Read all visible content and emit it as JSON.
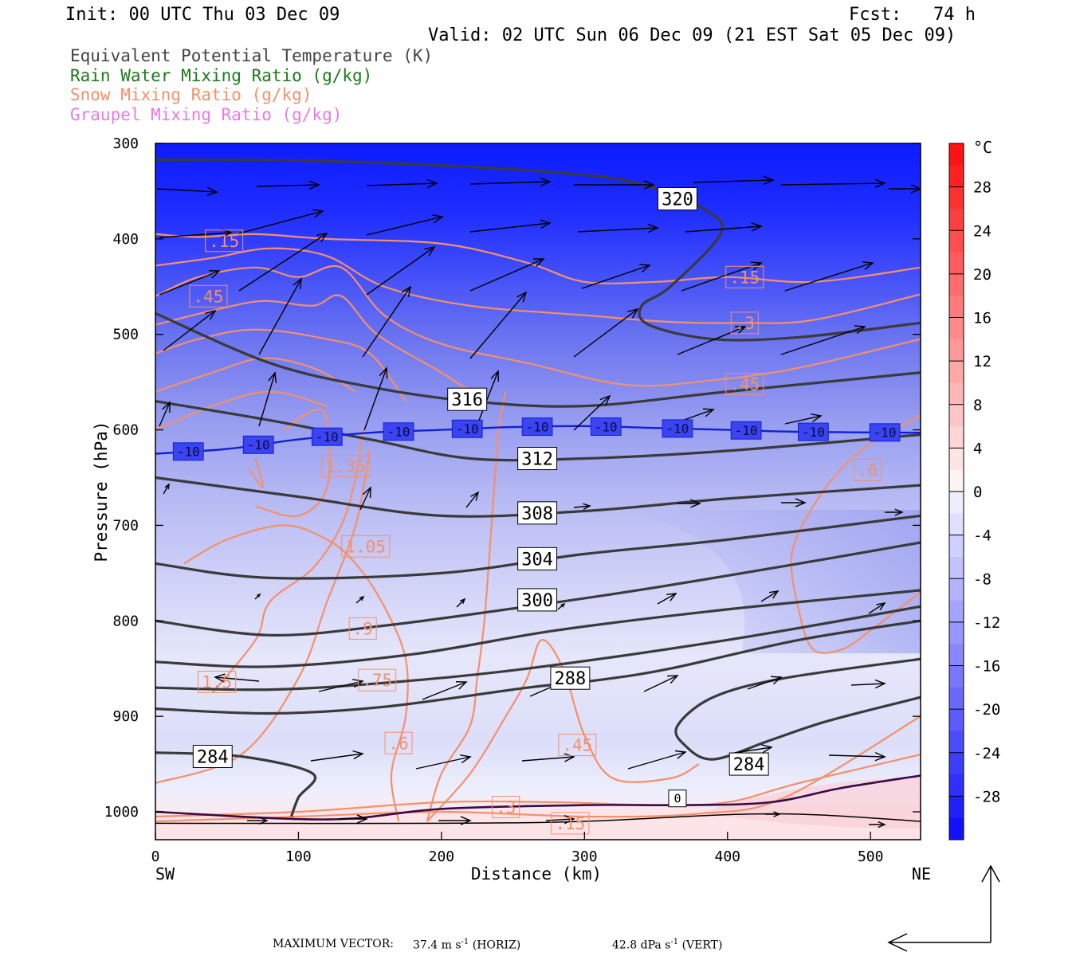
{
  "header": {
    "init": "Init: 00 UTC Thu 03 Dec 09",
    "fcst": "Fcst:   74 h",
    "valid": "Valid: 02 UTC Sun 06 Dec 09 (21 EST Sat 05 Dec 09)"
  },
  "legend": [
    {
      "label": "Equivalent Potential Temperature (K)",
      "color": "#444444"
    },
    {
      "label": "Rain Water Mixing Ratio (g/kg)",
      "color": "#1a7a1a"
    },
    {
      "label": "Snow Mixing Ratio (g/kg)",
      "color": "#f4906a"
    },
    {
      "label": "Graupel Mixing Ratio (g/kg)",
      "color": "#e87ae8"
    }
  ],
  "footer": {
    "max_label": "MAXIMUM VECTOR:",
    "horiz_value": "37.4 m s",
    "horiz_exp": "-1",
    "horiz_unit": "(HORIZ)",
    "vert_value": "42.8 dPa s",
    "vert_exp": "-1",
    "vert_unit": "(VERT)"
  },
  "chart_data": {
    "type": "cross-section",
    "xlabel": "Distance (km)",
    "ylabel": "Pressure (hPa)",
    "xlim": [
      0,
      535
    ],
    "ylim": [
      1030,
      300
    ],
    "x_ticks": [
      0,
      100,
      200,
      300,
      400,
      500
    ],
    "y_ticks": [
      300,
      400,
      500,
      600,
      700,
      800,
      900,
      1000
    ],
    "left_end_label": "SW",
    "right_end_label": "NE",
    "colorbar": {
      "unit": "°C",
      "labels": [
        28,
        24,
        20,
        16,
        12,
        8,
        4,
        0,
        -4,
        -8,
        -12,
        -16,
        -20,
        -24,
        -28
      ],
      "range": [
        -32,
        32
      ]
    },
    "theta_e_contours": [
      {
        "level": 320,
        "label": "320",
        "points": [
          [
            0,
            317
          ],
          [
            100,
            318
          ],
          [
            200,
            323
          ],
          [
            300,
            333
          ],
          [
            345,
            345
          ],
          [
            385,
            370
          ],
          [
            395,
            395
          ],
          [
            360,
            450
          ],
          [
            340,
            470
          ],
          [
            345,
            490
          ],
          [
            390,
            505
          ],
          [
            450,
            503
          ],
          [
            535,
            488
          ]
        ],
        "label_at": [
          365,
          358
        ]
      },
      {
        "level": 316,
        "label": "316",
        "points": [
          [
            0,
            478
          ],
          [
            80,
            530
          ],
          [
            150,
            555
          ],
          [
            220,
            570
          ],
          [
            300,
            575
          ],
          [
            400,
            560
          ],
          [
            535,
            540
          ]
        ],
        "label_at": [
          218,
          568
        ]
      },
      {
        "level": 312,
        "label": "312",
        "points": [
          [
            0,
            570
          ],
          [
            80,
            590
          ],
          [
            150,
            610
          ],
          [
            220,
            630
          ],
          [
            300,
            630
          ],
          [
            400,
            622
          ],
          [
            535,
            605
          ]
        ],
        "label_at": [
          267,
          630
        ]
      },
      {
        "level": 308,
        "label": "308",
        "points": [
          [
            0,
            650
          ],
          [
            100,
            670
          ],
          [
            200,
            690
          ],
          [
            300,
            685
          ],
          [
            400,
            672
          ],
          [
            535,
            658
          ]
        ],
        "label_at": [
          267,
          687
        ]
      },
      {
        "level": 304,
        "label": "304",
        "points": [
          [
            0,
            740
          ],
          [
            80,
            755
          ],
          [
            200,
            750
          ],
          [
            300,
            730
          ],
          [
            400,
            715
          ],
          [
            535,
            690
          ]
        ],
        "label_at": [
          267,
          735
        ]
      },
      {
        "level": 300,
        "label": "300",
        "points": [
          [
            0,
            800
          ],
          [
            80,
            815
          ],
          [
            160,
            805
          ],
          [
            260,
            785
          ],
          [
            350,
            765
          ],
          [
            450,
            740
          ],
          [
            535,
            718
          ]
        ],
        "label_at": [
          267,
          778
        ]
      },
      {
        "level": 296,
        "label": "",
        "points": [
          [
            0,
            843
          ],
          [
            80,
            848
          ],
          [
            180,
            835
          ],
          [
            280,
            810
          ],
          [
            400,
            788
          ],
          [
            535,
            768
          ]
        ],
        "label_at": null
      },
      {
        "level": 292,
        "label": "",
        "points": [
          [
            0,
            870
          ],
          [
            80,
            872
          ],
          [
            160,
            865
          ],
          [
            260,
            850
          ],
          [
            400,
            820
          ],
          [
            535,
            785
          ]
        ],
        "label_at": null
      },
      {
        "level": 288,
        "label": "288",
        "points": [
          [
            0,
            892
          ],
          [
            80,
            897
          ],
          [
            160,
            890
          ],
          [
            260,
            870
          ],
          [
            310,
            862
          ],
          [
            360,
            850
          ],
          [
            450,
            820
          ],
          [
            535,
            800
          ]
        ],
        "label_at": [
          290,
          860
        ]
      },
      {
        "level": 284,
        "label": "284",
        "points": [
          [
            0,
            938
          ],
          [
            60,
            942
          ],
          [
            110,
            960
          ],
          [
            100,
            985
          ],
          [
            95,
            1005
          ]
        ],
        "label_at": [
          40,
          942
        ]
      },
      {
        "level": 284,
        "label": "284",
        "points": [
          [
            535,
            880
          ],
          [
            470,
            905
          ],
          [
            430,
            925
          ],
          [
            390,
            945
          ],
          [
            370,
            930
          ],
          [
            365,
            910
          ],
          [
            390,
            880
          ],
          [
            440,
            860
          ],
          [
            535,
            840
          ]
        ],
        "label_at": [
          415,
          950
        ]
      }
    ],
    "minus10_isotherm": {
      "label": "-10",
      "points": [
        [
          0,
          625
        ],
        [
          50,
          620
        ],
        [
          100,
          610
        ],
        [
          150,
          603
        ],
        [
          200,
          600
        ],
        [
          250,
          597
        ],
        [
          300,
          596
        ],
        [
          350,
          598
        ],
        [
          400,
          600
        ],
        [
          450,
          602
        ],
        [
          535,
          603
        ]
      ],
      "label_xs": [
        23,
        72,
        120,
        170,
        218,
        267,
        315,
        365,
        413,
        460,
        510
      ]
    },
    "zero_isotherm": {
      "label": "0",
      "points": [
        [
          0,
          1000
        ],
        [
          120,
          1008
        ],
        [
          200,
          997
        ],
        [
          300,
          993
        ],
        [
          370,
          993
        ],
        [
          430,
          990
        ],
        [
          480,
          975
        ],
        [
          535,
          962
        ]
      ],
      "label_at": [
        365,
        986
      ]
    },
    "snow_labels": [
      {
        "text": ".15",
        "at": [
          48,
          402
        ]
      },
      {
        "text": ".45",
        "at": [
          37,
          460
        ]
      },
      {
        "text": "1.35",
        "at": [
          133,
          638
        ]
      },
      {
        "text": "1.05",
        "at": [
          147,
          722
        ]
      },
      {
        "text": ".9",
        "at": [
          145,
          808
        ]
      },
      {
        "text": ".75",
        "at": [
          155,
          862
        ]
      },
      {
        "text": "1.5",
        "at": [
          43,
          864
        ]
      },
      {
        "text": ".6",
        "at": [
          170,
          928
        ]
      },
      {
        "text": ".45",
        "at": [
          295,
          930
        ]
      },
      {
        "text": ".3",
        "at": [
          245,
          995
        ]
      },
      {
        "text": ".15",
        "at": [
          290,
          1012
        ]
      },
      {
        "text": ".15",
        "at": [
          412,
          440
        ]
      },
      {
        "text": ".3",
        "at": [
          412,
          488
        ]
      },
      {
        "text": ".45",
        "at": [
          412,
          552
        ]
      },
      {
        "text": ".6",
        "at": [
          498,
          642
        ]
      }
    ]
  }
}
